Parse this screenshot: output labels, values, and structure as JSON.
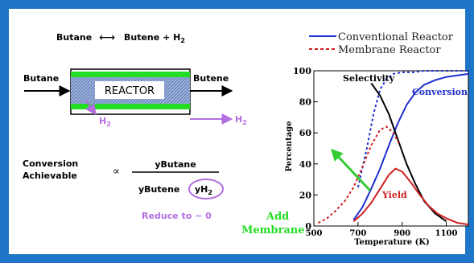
{
  "reaction": {
    "left": "Butane",
    "arrow": "⟷",
    "right": "Butene + H",
    "right_sub": "2"
  },
  "reactor": {
    "inlet_label": "Butane",
    "outlet_label": "Butene",
    "body_label": "REACTOR",
    "permeate_label": "H",
    "permeate_sub": "2",
    "permeate_out_label": "H",
    "permeate_out_sub": "2"
  },
  "equation": {
    "lhs_line1": "Conversion",
    "lhs_line2": "Achievable",
    "relation": "∝",
    "numerator": "yButane",
    "denominator_prefix": "yButene",
    "denominator_highlight": "yH",
    "denominator_highlight_sub": "2",
    "note": "Reduce to ~ 0"
  },
  "add_membrane": {
    "line1": "Add",
    "line2": "Membrane"
  },
  "colors": {
    "frame": "#1f76c8",
    "conventional": "#1f2fd0",
    "membrane": "#d01f1f",
    "selectivity": "#000000",
    "reactor_wall": "#22dd22",
    "purple": "#b36fe0",
    "green_arrow": "#33cc33",
    "add_membrane_text": "#22dd22"
  },
  "chart_data": {
    "type": "line",
    "xlabel": "Temperature (K)",
    "ylabel": "Percentage",
    "xlim": [
      500,
      1200
    ],
    "ylim": [
      0,
      100
    ],
    "x_ticks": [
      500,
      700,
      900,
      1100
    ],
    "y_ticks": [
      0,
      20,
      40,
      60,
      80,
      100
    ],
    "legend": [
      {
        "name": "Conventional Reactor",
        "style": "solid",
        "color": "#1f2fd0"
      },
      {
        "name": "Membrane Reactor",
        "style": "dashed",
        "color": "#d01f1f"
      }
    ],
    "annotations": [
      {
        "text": "Selectivity",
        "color": "#000000"
      },
      {
        "text": "Conversion",
        "color": "#1f2fd0"
      },
      {
        "text": "Yield",
        "color": "#d01f1f"
      }
    ],
    "series": [
      {
        "name": "Conversion",
        "reactor": "Conventional Reactor",
        "style": "solid",
        "color": "#1f2fd0",
        "x": [
          680,
          720,
          760,
          800,
          840,
          880,
          920,
          960,
          1000,
          1050,
          1100,
          1150,
          1200
        ],
        "y": [
          4,
          12,
          24,
          37,
          52,
          66,
          78,
          86,
          91,
          94,
          96,
          97,
          98
        ]
      },
      {
        "name": "Conversion",
        "reactor": "Membrane Reactor",
        "style": "dashed",
        "color": "#1f2fd0",
        "x": [
          700,
          740,
          770,
          800,
          830,
          860,
          900,
          950,
          1000,
          1100,
          1200
        ],
        "y": [
          25,
          50,
          72,
          88,
          95,
          98,
          99,
          99,
          100,
          100,
          100
        ]
      },
      {
        "name": "Selectivity",
        "reactor": "Conventional Reactor",
        "style": "solid",
        "color": "#000000",
        "x": [
          760,
          800,
          840,
          880,
          920,
          960,
          1000,
          1050,
          1100
        ],
        "y": [
          92,
          84,
          72,
          56,
          40,
          27,
          16,
          8,
          3
        ]
      },
      {
        "name": "Yield",
        "reactor": "Conventional Reactor",
        "style": "solid",
        "color": "#d01f1f",
        "x": [
          680,
          720,
          760,
          800,
          840,
          870,
          900,
          940,
          980,
          1020,
          1060,
          1100,
          1150,
          1200
        ],
        "y": [
          3,
          8,
          15,
          24,
          33,
          37,
          35,
          28,
          20,
          13,
          8,
          5,
          2,
          1
        ]
      },
      {
        "name": "Yield",
        "reactor": "Membrane Reactor",
        "style": "dashed",
        "color": "#d01f1f",
        "x": [
          520,
          560,
          600,
          640,
          680,
          720,
          760,
          800,
          830,
          860,
          890
        ],
        "y": [
          2,
          5,
          10,
          16,
          25,
          38,
          52,
          62,
          64,
          60,
          52
        ]
      }
    ]
  }
}
